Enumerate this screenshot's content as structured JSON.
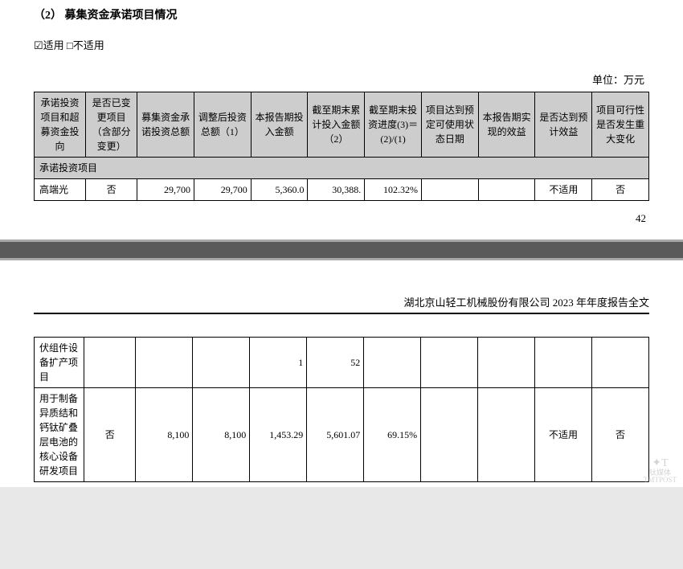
{
  "page1": {
    "section_title": "（2） 募集资金承诺项目情况",
    "checkbox_row": "☑适用 □不适用",
    "unit": "单位：万元",
    "columns": [
      "承诺投资项目和超募资金投向",
      "是否已变更项目（含部分变更）",
      "募集资金承诺投资总额",
      "调整后投资总额（1）",
      "本报告期投入金额",
      "截至期末累计投入金额（2）",
      "截至期末投资进度(3)＝(2)/(1)",
      "项目达到预定可使用状态日期",
      "本报告期实现的效益",
      "是否达到预计效益",
      "项目可行性是否发生重大变化"
    ],
    "sub_header": "承诺投资项目",
    "row1": {
      "c0": "高端光",
      "c1": "否",
      "c2": "29,700",
      "c3": "29,700",
      "c4": "5,360.0",
      "c5": "30,388.",
      "c6": "102.32%",
      "c7": "",
      "c8": "",
      "c9": "不适用",
      "c10": "否"
    },
    "pagenum": "42"
  },
  "page2": {
    "report_title": "湖北京山轻工机械股份有限公司 2023 年年度报告全文",
    "row1": {
      "c0": "伏组件设备扩产项目",
      "c1": "",
      "c2": "",
      "c3": "",
      "c4": "1",
      "c5": "52",
      "c6": "",
      "c7": "",
      "c8": "",
      "c9": "",
      "c10": ""
    },
    "row2": {
      "c0": "用于制备异质结和钙钛矿叠层电池的核心设备研发项目",
      "c1": "否",
      "c2": "8,100",
      "c3": "8,100",
      "c4": "1,453.29",
      "c5": "5,601.07",
      "c6": "69.15%",
      "c7": "",
      "c8": "",
      "c9": "不适用",
      "c10": "否"
    },
    "watermark_brand": "钛媒体",
    "watermark_sub": "TMTPOST"
  }
}
